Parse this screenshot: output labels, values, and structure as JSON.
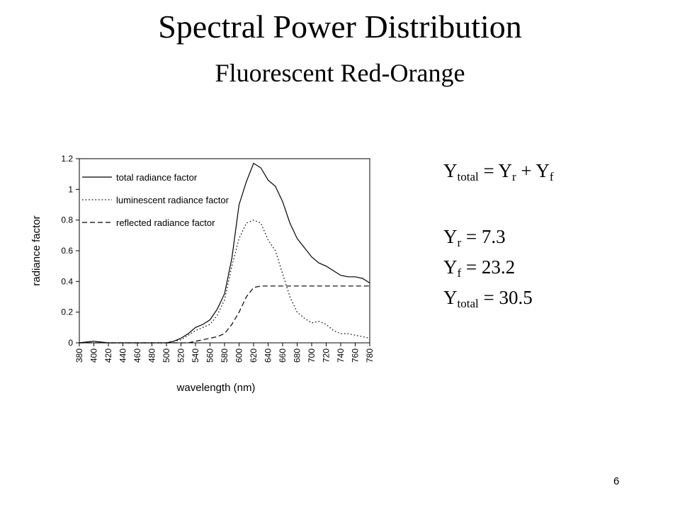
{
  "slide": {
    "title": "Spectral Power Distribution",
    "subtitle": "Fluorescent Red-Orange",
    "page_number": "6"
  },
  "equations": {
    "total_eq": {
      "Y": "Y",
      "total": "total",
      "eq": " = ",
      "Yr": "Y",
      "r": "r",
      "plus": " + ",
      "Yf": "Y",
      "f": "f"
    },
    "yr": {
      "Y": "Y",
      "sub": "r",
      "rhs": " = 7.3"
    },
    "yf": {
      "Y": "Y",
      "sub": "f",
      "rhs": " = 23.2"
    },
    "ytotal": {
      "Y": "Y",
      "sub": "total",
      "rhs": " = 30.5"
    }
  },
  "chart_data": {
    "type": "line",
    "xlabel": "wavelength (nm)",
    "ylabel": "radiance factor",
    "xlim": [
      380,
      780
    ],
    "ylim": [
      0,
      1.2
    ],
    "yticks": [
      0,
      0.2,
      0.4,
      0.6,
      0.8,
      1,
      1.2
    ],
    "ytick_labels": [
      "0",
      "0.2",
      "0.4",
      "0.6",
      "0.8",
      "1",
      "1.2"
    ],
    "xticks": [
      380,
      400,
      420,
      440,
      460,
      480,
      500,
      520,
      540,
      560,
      580,
      600,
      620,
      640,
      660,
      680,
      700,
      720,
      740,
      760,
      780
    ],
    "grid": false,
    "legend_position": "top-left",
    "x": [
      380,
      400,
      420,
      440,
      460,
      480,
      500,
      510,
      520,
      530,
      540,
      550,
      560,
      570,
      580,
      590,
      600,
      610,
      620,
      630,
      640,
      650,
      660,
      670,
      680,
      690,
      700,
      710,
      720,
      730,
      740,
      750,
      760,
      770,
      780
    ],
    "series": [
      {
        "name": "total radiance factor",
        "dash": "solid",
        "values": [
          0,
          0.01,
          0,
          0,
          0,
          0,
          0,
          0.01,
          0.03,
          0.06,
          0.1,
          0.12,
          0.15,
          0.22,
          0.32,
          0.55,
          0.9,
          1.05,
          1.17,
          1.14,
          1.06,
          1.02,
          0.92,
          0.78,
          0.68,
          0.62,
          0.56,
          0.52,
          0.5,
          0.47,
          0.44,
          0.43,
          0.43,
          0.42,
          0.39
        ]
      },
      {
        "name": "luminescent radiance factor",
        "dash": "dotted",
        "values": [
          0,
          0.01,
          0,
          0,
          0,
          0,
          0,
          0.01,
          0.02,
          0.05,
          0.08,
          0.1,
          0.12,
          0.18,
          0.28,
          0.5,
          0.68,
          0.78,
          0.8,
          0.78,
          0.67,
          0.6,
          0.45,
          0.3,
          0.2,
          0.16,
          0.13,
          0.14,
          0.12,
          0.08,
          0.06,
          0.06,
          0.05,
          0.04,
          0.03
        ]
      },
      {
        "name": "reflected radiance factor",
        "dash": "dashed",
        "values": [
          0,
          0,
          0,
          0,
          0,
          0,
          0,
          0,
          0,
          0,
          0.01,
          0.02,
          0.03,
          0.04,
          0.06,
          0.12,
          0.2,
          0.3,
          0.36,
          0.37,
          0.37,
          0.37,
          0.37,
          0.37,
          0.37,
          0.37,
          0.37,
          0.37,
          0.37,
          0.37,
          0.37,
          0.37,
          0.37,
          0.37,
          0.37
        ]
      }
    ]
  }
}
